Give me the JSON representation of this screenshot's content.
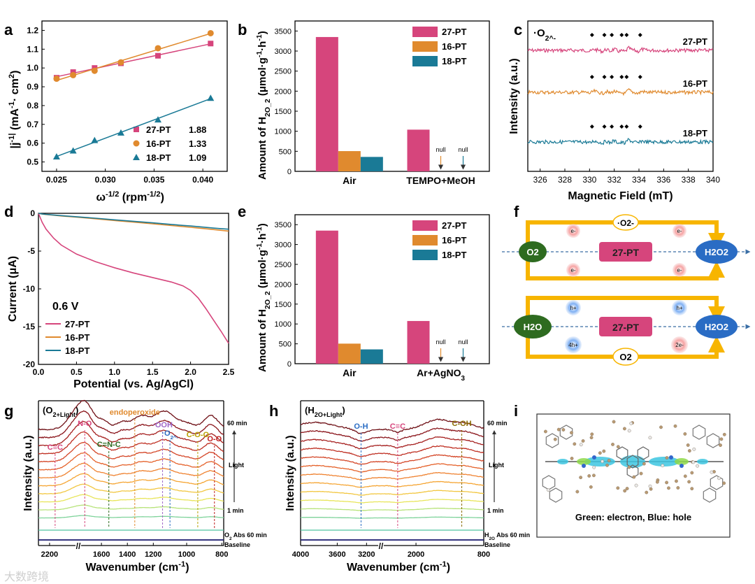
{
  "panel_labels": [
    "a",
    "b",
    "c",
    "d",
    "e",
    "f",
    "g",
    "h",
    "i"
  ],
  "colors": {
    "pt27": "#d6457c",
    "pt16": "#e08a2e",
    "pt18": "#1a7a96",
    "box": "#f7b500",
    "node_green": "#2e6b20",
    "node_blue": "#2a6cc4",
    "pink_box": "#d6457c"
  },
  "chart_data": [
    {
      "id": "a",
      "type": "scatter",
      "xlabel": "ω-1/2 (rpm-1/2)",
      "ylabel": "|j-1| (mA-1· cm2)",
      "xlim": [
        0.0235,
        0.0425
      ],
      "ylim": [
        0.45,
        1.25
      ],
      "xticks": [
        "0.025",
        "0.030",
        "0.035",
        "0.040"
      ],
      "xtick_values": [
        0.025,
        0.03,
        0.035,
        0.04
      ],
      "yticks": [
        "0.5",
        "0.6",
        "0.7",
        "0.8",
        "0.9",
        "1.0",
        "1.1",
        "1.2"
      ],
      "ytick_values": [
        0.5,
        0.6,
        0.7,
        0.8,
        0.9,
        1.0,
        1.1,
        1.2
      ],
      "x": [
        0.025,
        0.0267,
        0.0289,
        0.0316,
        0.0354,
        0.0408
      ],
      "series": [
        {
          "name": "27-PT",
          "value_label": "1.88",
          "marker": "square",
          "color": "#d6457c",
          "values": [
            0.948,
            0.978,
            1.0,
            1.025,
            1.065,
            1.13
          ]
        },
        {
          "name": "16-PT",
          "value_label": "1.33",
          "marker": "circle",
          "color": "#e08a2e",
          "values": [
            0.943,
            0.962,
            0.985,
            1.03,
            1.105,
            1.185
          ]
        },
        {
          "name": "18-PT",
          "value_label": "1.09",
          "marker": "triangle",
          "color": "#1a7a96",
          "values": [
            0.528,
            0.56,
            0.615,
            0.655,
            0.725,
            0.84
          ]
        }
      ]
    },
    {
      "id": "b",
      "type": "bar",
      "ylabel": "Amount of H2O2 (μmol·g-1·h-1)",
      "ylim": [
        0,
        3750
      ],
      "yticks": [
        "0",
        "500",
        "1000",
        "1500",
        "2000",
        "2500",
        "3000",
        "3500"
      ],
      "ytick_values": [
        0,
        500,
        1000,
        1500,
        2000,
        2500,
        3000,
        3500
      ],
      "categories": [
        "Air",
        "TEMPO+MeOH"
      ],
      "series": [
        {
          "name": "27-PT",
          "color": "#d6457c",
          "values": [
            3350,
            1040
          ]
        },
        {
          "name": "16-PT",
          "color": "#e08a2e",
          "values": [
            505,
            0
          ]
        },
        {
          "name": "18-PT",
          "color": "#1a7a96",
          "values": [
            360,
            0
          ]
        }
      ],
      "null_label": "null"
    },
    {
      "id": "c",
      "type": "line",
      "xlabel": "Magnetic Field (mT)",
      "ylabel": "Intensity (a.u.)",
      "xlim": [
        325,
        340
      ],
      "xticks": [
        "326",
        "328",
        "330",
        "332",
        "334",
        "336",
        "338",
        "340"
      ],
      "xtick_values": [
        326,
        328,
        330,
        332,
        334,
        336,
        338,
        340
      ],
      "title": "·O2-",
      "series": [
        {
          "name": "27-PT",
          "color": "#d6457c"
        },
        {
          "name": "16-PT",
          "color": "#e08a2e"
        },
        {
          "name": "18-PT",
          "color": "#1a7a96"
        }
      ],
      "peak_positions": [
        330.2,
        331.2,
        331.8,
        332.6,
        333.0,
        334.1
      ]
    },
    {
      "id": "d",
      "type": "line",
      "xlabel": "Potential (vs. Ag/AgCl)",
      "ylabel": "Current (μA)",
      "xlim": [
        0,
        2.5
      ],
      "ylim": [
        -20,
        0
      ],
      "xticks": [
        "0.0",
        "0.5",
        "1.0",
        "1.5",
        "2.0",
        "2.5"
      ],
      "xtick_values": [
        0,
        0.5,
        1.0,
        1.5,
        2.0,
        2.5
      ],
      "yticks": [
        "0",
        "-5",
        "-10",
        "-15",
        "-20"
      ],
      "ytick_values": [
        0,
        -5,
        -10,
        -15,
        -20
      ],
      "annotation": "0.6 V",
      "x": [
        0,
        0.05,
        0.1,
        0.2,
        0.3,
        0.5,
        0.75,
        1.0,
        1.25,
        1.5,
        1.75,
        1.9,
        2.0,
        2.1,
        2.2,
        2.3,
        2.4,
        2.5
      ],
      "series": [
        {
          "name": "27-PT",
          "color": "#d6457c",
          "values": [
            0,
            -1.2,
            -2.1,
            -3.3,
            -4.2,
            -5.4,
            -6.4,
            -7.2,
            -7.9,
            -8.5,
            -9.1,
            -9.6,
            -10.2,
            -11.2,
            -12.6,
            -14.1,
            -15.6,
            -17.2
          ]
        },
        {
          "name": "16-PT",
          "color": "#e08a2e",
          "values": [
            0,
            -0.1,
            -0.16,
            -0.25,
            -0.35,
            -0.5,
            -0.72,
            -0.95,
            -1.17,
            -1.39,
            -1.62,
            -1.76,
            -1.85,
            -1.95,
            -2.05,
            -2.15,
            -2.25,
            -2.35
          ]
        },
        {
          "name": "18-PT",
          "color": "#1a7a96",
          "values": [
            0,
            -0.08,
            -0.14,
            -0.22,
            -0.31,
            -0.45,
            -0.65,
            -0.86,
            -1.06,
            -1.26,
            -1.47,
            -1.6,
            -1.68,
            -1.77,
            -1.86,
            -1.95,
            -2.03,
            -2.1
          ]
        }
      ]
    },
    {
      "id": "e",
      "type": "bar",
      "ylabel": "Amount of H2O2 (μmol·g-1·h-1)",
      "ylim": [
        0,
        3750
      ],
      "yticks": [
        "0",
        "500",
        "1000",
        "1500",
        "2000",
        "2500",
        "3000",
        "3500"
      ],
      "ytick_values": [
        0,
        500,
        1000,
        1500,
        2000,
        2500,
        3000,
        3500
      ],
      "categories": [
        "Air",
        "Ar+AgNO3"
      ],
      "series": [
        {
          "name": "27-PT",
          "color": "#d6457c",
          "values": [
            3350,
            1075
          ]
        },
        {
          "name": "16-PT",
          "color": "#e08a2e",
          "values": [
            505,
            0
          ]
        },
        {
          "name": "18-PT",
          "color": "#1a7a96",
          "values": [
            360,
            0
          ]
        }
      ],
      "null_label": "null"
    },
    {
      "id": "g",
      "type": "line",
      "xlabel": "Wavenumber (cm-1)",
      "ylabel": "Intensity (a.u.)",
      "title": "(O2+Light)",
      "xticks": [
        "2200",
        "1600",
        "1400",
        "1200",
        "1000",
        "800"
      ],
      "xtick_values": [
        2200,
        1600,
        1400,
        1200,
        1000,
        800
      ],
      "annotations": [
        "C≡C",
        "N-O",
        "C=N-C",
        "endoperoxide",
        "·OOH",
        "·O2-",
        "C-O-O",
        "O-O"
      ],
      "labels": {
        "top": "60 min",
        "middle": "Light",
        "bottom": "1 min",
        "abs": "O2 Abs 60 min",
        "base": "Baseline"
      }
    },
    {
      "id": "h",
      "type": "line",
      "xlabel": "Wavenumber (cm-1)",
      "ylabel": "Intensity (a.u.)",
      "title": "(H2O+Light)",
      "xticks": [
        "4000",
        "3600",
        "3200",
        "2000",
        "800"
      ],
      "xtick_values": [
        4000,
        3600,
        3200,
        2000,
        800
      ],
      "annotations": [
        "O-H",
        "C≡C",
        "C-OH"
      ],
      "labels": {
        "top": "60 min",
        "middle": "Light",
        "bottom": "1 min",
        "abs": "H2O Abs 60 min",
        "base": "Baseline"
      }
    }
  ],
  "panel_f": {
    "top": {
      "left": "O2",
      "center": "27-PT",
      "right": "H2O2",
      "top_mid": "·O2-",
      "carrier": "e-"
    },
    "bottom": {
      "left": "H2O",
      "center": "27-PT",
      "right": "H2O2",
      "bottom_mid": "O2",
      "carrier_top": "h+",
      "carrier_left": "4h+",
      "carrier_right": "2e-"
    }
  },
  "panel_i": {
    "caption": "Green: electron, Blue: hole"
  },
  "watermark": "大数跨境"
}
